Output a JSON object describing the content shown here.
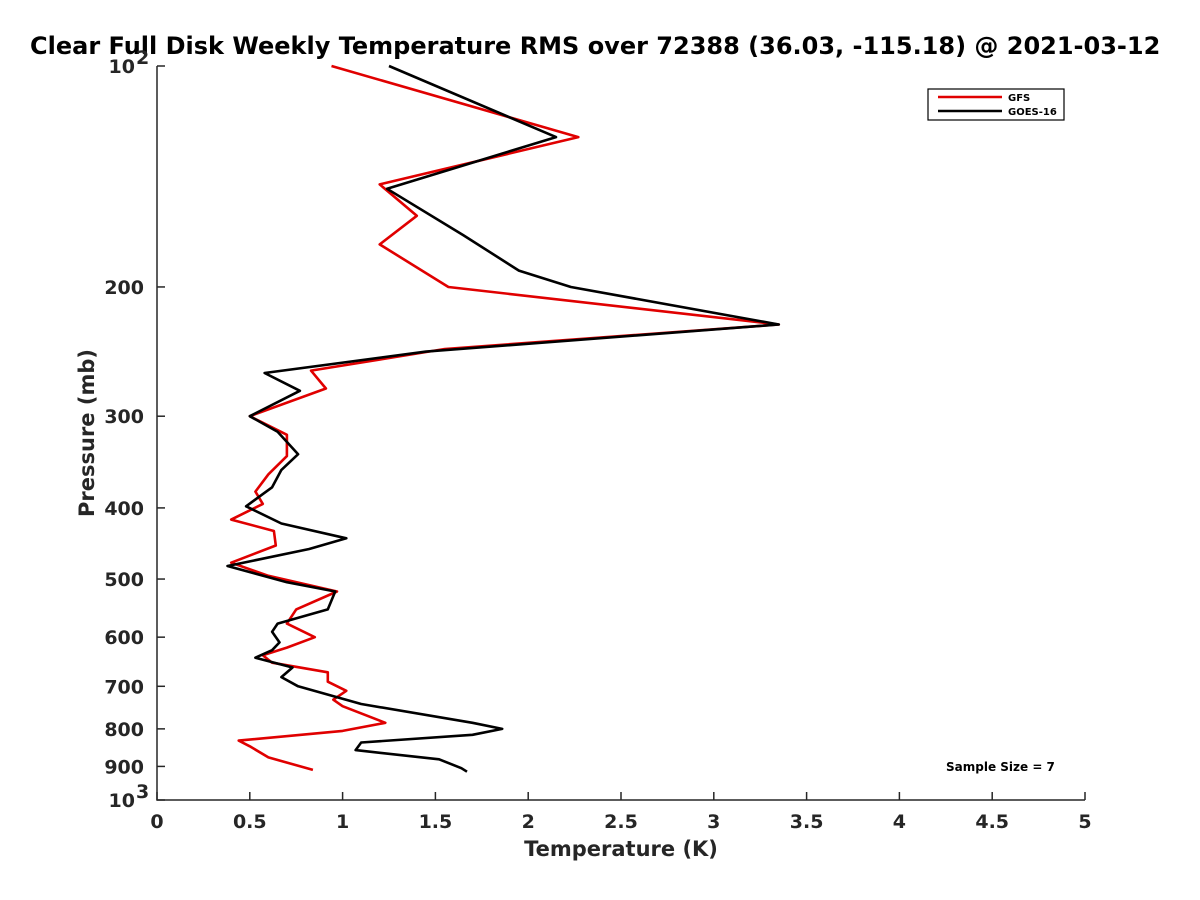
{
  "chart_data": {
    "type": "line",
    "title": "Clear Full Disk Weekly Temperature RMS over 72388 (36.03, -115.18) @ 2021-03-12",
    "xlabel": "Temperature (K)",
    "ylabel": "Pressure (mb)",
    "xlim": [
      0,
      5
    ],
    "ylim": [
      100,
      1000
    ],
    "y_scale": "log",
    "y_direction": "reversed",
    "x_ticks": [
      "0",
      "0.5",
      "1",
      "1.5",
      "2",
      "2.5",
      "3",
      "3.5",
      "4",
      "4.5",
      "5"
    ],
    "y_ticks": [
      {
        "value": 100,
        "label": "10",
        "sup": "2"
      },
      {
        "value": 200,
        "label": "200"
      },
      {
        "value": 300,
        "label": "300"
      },
      {
        "value": 400,
        "label": "400"
      },
      {
        "value": 500,
        "label": "500"
      },
      {
        "value": 600,
        "label": "600"
      },
      {
        "value": 700,
        "label": "700"
      },
      {
        "value": 800,
        "label": "800"
      },
      {
        "value": 900,
        "label": "900"
      },
      {
        "value": 1000,
        "label": "10",
        "sup": "3"
      }
    ],
    "legend_position": "top-right",
    "grid": false,
    "annotation": "Sample Size = 7",
    "series": [
      {
        "name": "GFS",
        "color": "#e00000",
        "points": [
          [
            0.94,
            100
          ],
          [
            2.27,
            125
          ],
          [
            1.2,
            145
          ],
          [
            1.4,
            160
          ],
          [
            1.2,
            175
          ],
          [
            1.57,
            200
          ],
          [
            3.35,
            225
          ],
          [
            1.55,
            243
          ],
          [
            0.83,
            260
          ],
          [
            0.91,
            275
          ],
          [
            0.5,
            300
          ],
          [
            0.7,
            318
          ],
          [
            0.7,
            340
          ],
          [
            0.6,
            360
          ],
          [
            0.53,
            380
          ],
          [
            0.57,
            395
          ],
          [
            0.4,
            415
          ],
          [
            0.63,
            430
          ],
          [
            0.64,
            450
          ],
          [
            0.4,
            475
          ],
          [
            0.6,
            495
          ],
          [
            0.97,
            520
          ],
          [
            0.75,
            550
          ],
          [
            0.7,
            575
          ],
          [
            0.85,
            600
          ],
          [
            0.7,
            620
          ],
          [
            0.57,
            635
          ],
          [
            0.62,
            650
          ],
          [
            0.92,
            670
          ],
          [
            0.92,
            690
          ],
          [
            1.02,
            710
          ],
          [
            0.95,
            730
          ],
          [
            1.0,
            745
          ],
          [
            1.23,
            785
          ],
          [
            1.0,
            805
          ],
          [
            0.44,
            830
          ],
          [
            0.5,
            845
          ],
          [
            0.6,
            875
          ],
          [
            0.84,
            910
          ]
        ]
      },
      {
        "name": "GOES-16",
        "color": "#000000",
        "points": [
          [
            1.25,
            100
          ],
          [
            2.15,
            125
          ],
          [
            1.24,
            147
          ],
          [
            1.65,
            170
          ],
          [
            1.95,
            190
          ],
          [
            2.23,
            200
          ],
          [
            3.35,
            225
          ],
          [
            1.45,
            245
          ],
          [
            0.58,
            262
          ],
          [
            0.77,
            277
          ],
          [
            0.5,
            300
          ],
          [
            0.65,
            315
          ],
          [
            0.76,
            338
          ],
          [
            0.67,
            355
          ],
          [
            0.62,
            375
          ],
          [
            0.48,
            398
          ],
          [
            0.67,
            420
          ],
          [
            1.02,
            440
          ],
          [
            0.82,
            455
          ],
          [
            0.38,
            480
          ],
          [
            0.7,
            505
          ],
          [
            0.96,
            520
          ],
          [
            0.92,
            550
          ],
          [
            0.65,
            575
          ],
          [
            0.62,
            590
          ],
          [
            0.66,
            610
          ],
          [
            0.62,
            625
          ],
          [
            0.53,
            640
          ],
          [
            0.73,
            660
          ],
          [
            0.67,
            680
          ],
          [
            0.76,
            700
          ],
          [
            1.1,
            740
          ],
          [
            1.7,
            785
          ],
          [
            1.86,
            800
          ],
          [
            1.7,
            815
          ],
          [
            1.1,
            835
          ],
          [
            1.07,
            855
          ],
          [
            1.52,
            880
          ],
          [
            1.64,
            905
          ],
          [
            1.67,
            915
          ]
        ]
      }
    ]
  }
}
